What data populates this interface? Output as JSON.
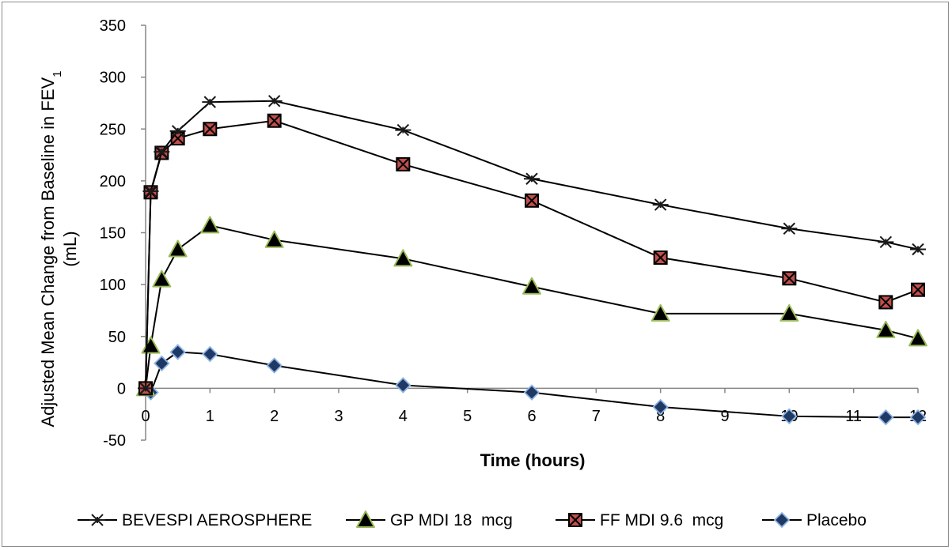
{
  "chart_data": {
    "type": "line",
    "title": "",
    "xlabel": "Time (hours)",
    "ylabel_line1": "Adjusted Mean Change from Baseline in FEV",
    "ylabel_subscript": "1",
    "ylabel_line2": "(mL)",
    "xlim": [
      0,
      12
    ],
    "ylim": [
      -50,
      350
    ],
    "x_ticks": [
      0,
      1,
      2,
      3,
      4,
      5,
      6,
      7,
      8,
      9,
      10,
      11,
      12
    ],
    "y_ticks": [
      -50,
      0,
      50,
      100,
      150,
      200,
      250,
      300,
      350
    ],
    "grid": false,
    "legend_position": "bottom",
    "series": [
      {
        "name": "BEVESPI AEROSPHERE",
        "marker": "asterisk",
        "x": [
          0,
          0.08,
          0.25,
          0.5,
          1,
          2,
          4,
          6,
          8,
          10,
          11.5,
          12
        ],
        "values": [
          0,
          190,
          228,
          248,
          276,
          277,
          249,
          202,
          177,
          154,
          141,
          134
        ]
      },
      {
        "name": "GP MDI 18  mcg",
        "marker": "triangle",
        "x": [
          0,
          0.08,
          0.25,
          0.5,
          1,
          2,
          4,
          6,
          8,
          10,
          11.5,
          12
        ],
        "values": [
          0,
          41,
          105,
          134,
          157,
          143,
          125,
          98,
          72,
          72,
          56,
          48
        ]
      },
      {
        "name": "FF MDI 9.6  mcg",
        "marker": "square-x",
        "x": [
          0,
          0.08,
          0.25,
          0.5,
          1,
          2,
          4,
          6,
          8,
          10,
          11.5,
          12
        ],
        "values": [
          0,
          189,
          227,
          241,
          250,
          258,
          216,
          181,
          126,
          106,
          83,
          95
        ]
      },
      {
        "name": "Placebo",
        "marker": "diamond",
        "x": [
          0,
          0.08,
          0.25,
          0.5,
          1,
          2,
          4,
          6,
          8,
          10,
          11.5,
          12
        ],
        "values": [
          0,
          -4,
          24,
          35,
          33,
          22,
          3,
          -4,
          -18,
          -27,
          -28,
          -28
        ]
      }
    ]
  }
}
